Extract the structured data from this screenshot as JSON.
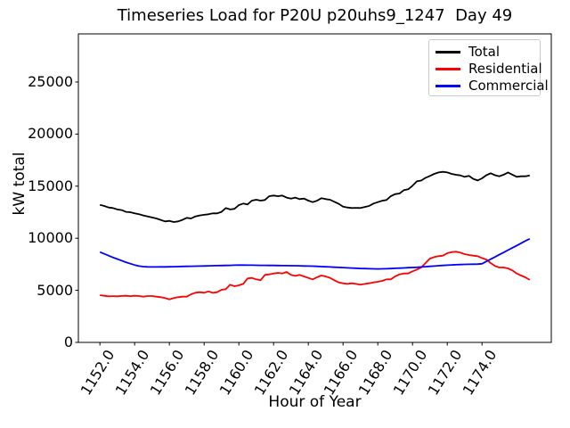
{
  "chart_data": {
    "type": "line",
    "title": "Timeseries Load for P20U p20uhs9_1247  Day 49",
    "xlabel": "Hour of Year",
    "ylabel": "kW total",
    "xlim": [
      1150.76,
      1177.99
    ],
    "ylim": [
      0,
      29620
    ],
    "grid": false,
    "legend_position": "upper right",
    "x_ticks": {
      "values": [
        1152,
        1154,
        1156,
        1158,
        1160,
        1162,
        1164,
        1166,
        1168,
        1170,
        1172,
        1174
      ],
      "labels": [
        "1152.0",
        "1154.0",
        "1156.0",
        "1158.0",
        "1160.0",
        "1162.0",
        "1164.0",
        "1166.0",
        "1168.0",
        "1170.0",
        "1172.0",
        "1174.0"
      ]
    },
    "y_ticks": {
      "values": [
        0,
        5000,
        10000,
        15000,
        20000,
        25000
      ],
      "labels": [
        "0",
        "5000",
        "10000",
        "15000",
        "20000",
        "25000"
      ]
    },
    "x": [
      1152.0,
      1152.25,
      1152.5,
      1152.75,
      1153.0,
      1153.25,
      1153.5,
      1153.75,
      1154.0,
      1154.25,
      1154.5,
      1154.75,
      1155.0,
      1155.25,
      1155.5,
      1155.75,
      1156.0,
      1156.25,
      1156.5,
      1156.75,
      1157.0,
      1157.25,
      1157.5,
      1157.75,
      1158.0,
      1158.25,
      1158.5,
      1158.75,
      1159.0,
      1159.25,
      1159.5,
      1159.75,
      1160.0,
      1160.25,
      1160.5,
      1160.75,
      1161.0,
      1161.25,
      1161.5,
      1161.75,
      1162.0,
      1162.25,
      1162.5,
      1162.75,
      1163.0,
      1163.25,
      1163.5,
      1163.75,
      1164.0,
      1164.25,
      1164.5,
      1164.75,
      1165.0,
      1165.25,
      1165.5,
      1165.75,
      1166.0,
      1166.25,
      1166.5,
      1166.75,
      1167.0,
      1167.25,
      1167.5,
      1167.75,
      1168.0,
      1168.25,
      1168.5,
      1168.75,
      1169.0,
      1169.25,
      1169.5,
      1169.75,
      1170.0,
      1170.25,
      1170.5,
      1170.75,
      1171.0,
      1171.25,
      1171.5,
      1171.75,
      1172.0,
      1172.25,
      1172.5,
      1172.75,
      1173.0,
      1173.25,
      1173.5,
      1173.75,
      1174.0,
      1174.25,
      1174.5,
      1174.75,
      1175.0,
      1175.25,
      1175.5,
      1175.75,
      1176.0,
      1176.25,
      1176.5,
      1176.75
    ],
    "series": [
      {
        "name": "Total",
        "color": "#000000",
        "values": [
          13200,
          13100,
          12950,
          12900,
          12760,
          12700,
          12530,
          12500,
          12390,
          12300,
          12190,
          12100,
          11990,
          11900,
          11760,
          11620,
          11670,
          11560,
          11620,
          11760,
          11960,
          11900,
          12100,
          12190,
          12250,
          12300,
          12390,
          12390,
          12530,
          12900,
          12760,
          12820,
          13185,
          13330,
          13245,
          13610,
          13700,
          13610,
          13670,
          14040,
          14100,
          14040,
          14100,
          13900,
          13810,
          13900,
          13760,
          13810,
          13610,
          13470,
          13600,
          13840,
          13760,
          13700,
          13500,
          13300,
          13040,
          12950,
          12900,
          12920,
          12900,
          13000,
          13100,
          13330,
          13470,
          13600,
          13670,
          14040,
          14240,
          14300,
          14615,
          14700,
          15040,
          15470,
          15540,
          15800,
          15980,
          16180,
          16320,
          16380,
          16320,
          16180,
          16090,
          16030,
          15895,
          15980,
          15700,
          15550,
          15750,
          16050,
          16240,
          16050,
          15950,
          16100,
          16320,
          16100,
          15895,
          15950,
          15950,
          16030
        ]
      },
      {
        "name": "Residential",
        "color": "#ff0000",
        "values": [
          4540,
          4480,
          4425,
          4440,
          4425,
          4460,
          4480,
          4440,
          4480,
          4450,
          4390,
          4450,
          4450,
          4390,
          4340,
          4255,
          4135,
          4255,
          4340,
          4390,
          4390,
          4620,
          4770,
          4820,
          4770,
          4900,
          4760,
          4820,
          5050,
          5110,
          5540,
          5390,
          5480,
          5620,
          6135,
          6190,
          6050,
          5965,
          6480,
          6530,
          6620,
          6680,
          6620,
          6760,
          6480,
          6390,
          6480,
          6335,
          6190,
          6050,
          6250,
          6420,
          6335,
          6190,
          5965,
          5765,
          5680,
          5620,
          5680,
          5620,
          5540,
          5620,
          5680,
          5765,
          5820,
          5910,
          6050,
          6050,
          6335,
          6535,
          6620,
          6620,
          6823,
          6995,
          7190,
          7620,
          8050,
          8190,
          8280,
          8330,
          8560,
          8675,
          8705,
          8620,
          8475,
          8390,
          8330,
          8275,
          8100,
          7950,
          7620,
          7335,
          7190,
          7190,
          7105,
          6905,
          6620,
          6420,
          6250,
          6000
        ]
      },
      {
        "name": "Commercial",
        "color": "#0000ff",
        "values": [
          8670,
          8500,
          8330,
          8160,
          8000,
          7850,
          7700,
          7560,
          7430,
          7330,
          7280,
          7255,
          7245,
          7245,
          7250,
          7255,
          7260,
          7270,
          7280,
          7290,
          7300,
          7310,
          7320,
          7330,
          7340,
          7350,
          7360,
          7370,
          7380,
          7390,
          7400,
          7410,
          7420,
          7420,
          7415,
          7410,
          7405,
          7400,
          7395,
          7390,
          7385,
          7380,
          7375,
          7370,
          7365,
          7360,
          7350,
          7340,
          7330,
          7320,
          7300,
          7280,
          7260,
          7240,
          7220,
          7200,
          7180,
          7160,
          7140,
          7120,
          7100,
          7085,
          7070,
          7060,
          7055,
          7060,
          7070,
          7090,
          7110,
          7130,
          7150,
          7170,
          7190,
          7210,
          7240,
          7270,
          7300,
          7330,
          7360,
          7390,
          7415,
          7440,
          7460,
          7475,
          7490,
          7500,
          7510,
          7520,
          7550,
          7770,
          7990,
          8200,
          8420,
          8640,
          8860,
          9080,
          9300,
          9520,
          9740,
          9950
        ]
      }
    ]
  }
}
